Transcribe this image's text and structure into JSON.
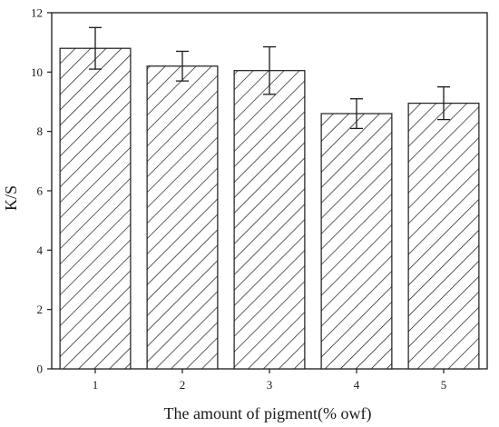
{
  "chart_data": {
    "type": "bar",
    "categories": [
      "1",
      "2",
      "3",
      "4",
      "5"
    ],
    "values": [
      10.8,
      10.2,
      10.05,
      8.6,
      8.95
    ],
    "errors": [
      0.7,
      0.5,
      0.8,
      0.5,
      0.55
    ],
    "xlabel": "The amount of pigment(% owf)",
    "ylabel": "K/S",
    "ylim": [
      0,
      12
    ],
    "yticks": [
      "0",
      "2",
      "4",
      "6",
      "8",
      "10",
      "12"
    ],
    "yticks_values": [
      0,
      2,
      4,
      6,
      8,
      10,
      12
    ],
    "bar_fill": "hatched",
    "colors": {
      "bar_stroke": "#1a1a1a",
      "hatch": "#1a1a1a",
      "background": "#ffffff",
      "axis": "#1a1a1a"
    },
    "grid": false
  }
}
